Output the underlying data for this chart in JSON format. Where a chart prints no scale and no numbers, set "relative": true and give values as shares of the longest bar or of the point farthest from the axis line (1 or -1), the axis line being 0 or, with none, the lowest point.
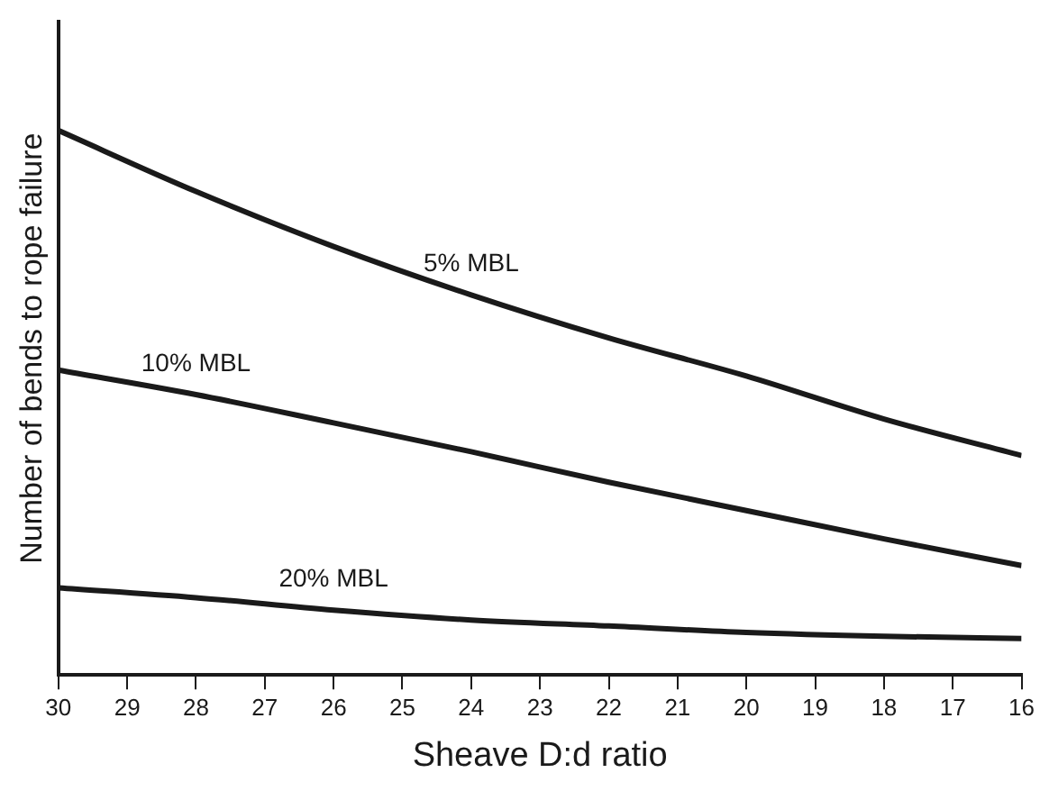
{
  "chart_data": {
    "type": "line",
    "xlabel": "Sheave D:d ratio",
    "ylabel": "Number of bends to rope failure",
    "relative": true,
    "grid": false,
    "legend": false,
    "marker": "none",
    "line_style": "solid",
    "x": [
      30,
      28,
      26,
      24,
      22,
      20,
      18,
      16
    ],
    "xlim": [
      30,
      16
    ],
    "xticks": [
      30,
      29,
      28,
      27,
      26,
      25,
      24,
      23,
      22,
      21,
      20,
      19,
      18,
      17,
      16
    ],
    "series": [
      {
        "name": "5% MBL",
        "color": "#1a1a1a",
        "values": [
          1.0,
          0.888,
          0.787,
          0.698,
          0.619,
          0.549,
          0.47,
          0.403
        ]
      },
      {
        "name": "10% MBL",
        "color": "#1a1a1a",
        "values": [
          0.56,
          0.515,
          0.463,
          0.41,
          0.354,
          0.302,
          0.25,
          0.201
        ]
      },
      {
        "name": "20% MBL",
        "color": "#1a1a1a",
        "values": [
          0.16,
          0.142,
          0.119,
          0.101,
          0.09,
          0.078,
          0.071,
          0.067
        ]
      }
    ]
  }
}
